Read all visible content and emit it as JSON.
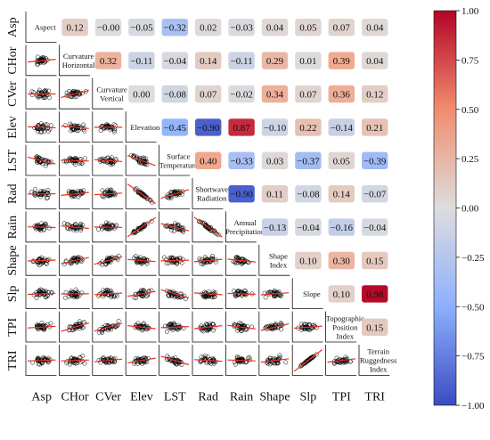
{
  "chart_data": {
    "type": "heatmap",
    "variables": [
      "Aspect",
      "CHor",
      "CVer",
      "Elev",
      "LST",
      "Rad",
      "Rain",
      "Shape",
      "Slp",
      "TPI",
      "TRI"
    ],
    "axis_labels": [
      "Asp",
      "CHor",
      "CVer",
      "Elev",
      "LST",
      "Rad",
      "Rain",
      "Shape",
      "Slp",
      "TPI",
      "TRI"
    ],
    "diagonal_labels": [
      [
        "Aspect"
      ],
      [
        "Curvature",
        "Horizontal"
      ],
      [
        "Curvature",
        "Vertical"
      ],
      [
        "Elevation"
      ],
      [
        "Surface",
        "Temperature"
      ],
      [
        "Shortwave",
        "Radiation"
      ],
      [
        "Annual",
        "Precipitation"
      ],
      [
        "Shape",
        "Index"
      ],
      [
        "Slope"
      ],
      [
        "Topographic",
        "Position",
        "Index"
      ],
      [
        "Terrain",
        "Ruggedness",
        "Index"
      ]
    ],
    "correlations": [
      {
        "row": 0,
        "col": 1,
        "text": "0.12",
        "value": 0.12
      },
      {
        "row": 0,
        "col": 2,
        "text": "−0.00",
        "value": 0.0
      },
      {
        "row": 0,
        "col": 3,
        "text": "−0.05",
        "value": -0.05
      },
      {
        "row": 0,
        "col": 4,
        "text": "−0.32",
        "value": -0.32
      },
      {
        "row": 0,
        "col": 5,
        "text": "0.02",
        "value": 0.02
      },
      {
        "row": 0,
        "col": 6,
        "text": "−0.03",
        "value": -0.03
      },
      {
        "row": 0,
        "col": 7,
        "text": "0.04",
        "value": 0.04
      },
      {
        "row": 0,
        "col": 8,
        "text": "0.05",
        "value": 0.05
      },
      {
        "row": 0,
        "col": 9,
        "text": "0.07",
        "value": 0.07
      },
      {
        "row": 0,
        "col": 10,
        "text": "0.04",
        "value": 0.04
      },
      {
        "row": 1,
        "col": 2,
        "text": "0.32",
        "value": 0.32
      },
      {
        "row": 1,
        "col": 3,
        "text": "−0.11",
        "value": -0.11
      },
      {
        "row": 1,
        "col": 4,
        "text": "−0.04",
        "value": -0.04
      },
      {
        "row": 1,
        "col": 5,
        "text": "0.14",
        "value": 0.14
      },
      {
        "row": 1,
        "col": 6,
        "text": "−0.11",
        "value": -0.11
      },
      {
        "row": 1,
        "col": 7,
        "text": "0.29",
        "value": 0.29
      },
      {
        "row": 1,
        "col": 8,
        "text": "0.01",
        "value": 0.01
      },
      {
        "row": 1,
        "col": 9,
        "text": "0.39",
        "value": 0.39
      },
      {
        "row": 1,
        "col": 10,
        "text": "0.04",
        "value": 0.04
      },
      {
        "row": 2,
        "col": 3,
        "text": "0.00",
        "value": 0.0
      },
      {
        "row": 2,
        "col": 4,
        "text": "−0.08",
        "value": -0.08
      },
      {
        "row": 2,
        "col": 5,
        "text": "0.07",
        "value": 0.07
      },
      {
        "row": 2,
        "col": 6,
        "text": "−0.02",
        "value": -0.02
      },
      {
        "row": 2,
        "col": 7,
        "text": "0.34",
        "value": 0.34
      },
      {
        "row": 2,
        "col": 8,
        "text": "0.07",
        "value": 0.07
      },
      {
        "row": 2,
        "col": 9,
        "text": "0.36",
        "value": 0.36
      },
      {
        "row": 2,
        "col": 10,
        "text": "0.12",
        "value": 0.12
      },
      {
        "row": 3,
        "col": 4,
        "text": "−0.45",
        "value": -0.45
      },
      {
        "row": 3,
        "col": 5,
        "text": "−0.90",
        "value": -0.9
      },
      {
        "row": 3,
        "col": 6,
        "text": "0.87",
        "value": 0.87
      },
      {
        "row": 3,
        "col": 7,
        "text": "−0.10",
        "value": -0.1
      },
      {
        "row": 3,
        "col": 8,
        "text": "0.22",
        "value": 0.22
      },
      {
        "row": 3,
        "col": 9,
        "text": "−0.14",
        "value": -0.14
      },
      {
        "row": 3,
        "col": 10,
        "text": "0.21",
        "value": 0.21
      },
      {
        "row": 4,
        "col": 5,
        "text": "0.40",
        "value": 0.4
      },
      {
        "row": 4,
        "col": 6,
        "text": "−0.33",
        "value": -0.33
      },
      {
        "row": 4,
        "col": 7,
        "text": "0.03",
        "value": 0.03
      },
      {
        "row": 4,
        "col": 8,
        "text": "−0.37",
        "value": -0.37
      },
      {
        "row": 4,
        "col": 9,
        "text": "0.05",
        "value": 0.05
      },
      {
        "row": 4,
        "col": 10,
        "text": "−0.39",
        "value": -0.39
      },
      {
        "row": 5,
        "col": 6,
        "text": "−0.90",
        "value": -0.9
      },
      {
        "row": 5,
        "col": 7,
        "text": "0.11",
        "value": 0.11
      },
      {
        "row": 5,
        "col": 8,
        "text": "−0.08",
        "value": -0.08
      },
      {
        "row": 5,
        "col": 9,
        "text": "0.14",
        "value": 0.14
      },
      {
        "row": 5,
        "col": 10,
        "text": "−0.07",
        "value": -0.07
      },
      {
        "row": 6,
        "col": 7,
        "text": "−0.13",
        "value": -0.13
      },
      {
        "row": 6,
        "col": 8,
        "text": "−0.04",
        "value": -0.04
      },
      {
        "row": 6,
        "col": 9,
        "text": "−0.16",
        "value": -0.16
      },
      {
        "row": 6,
        "col": 10,
        "text": "−0.04",
        "value": -0.04
      },
      {
        "row": 7,
        "col": 8,
        "text": "0.10",
        "value": 0.1
      },
      {
        "row": 7,
        "col": 9,
        "text": "0.30",
        "value": 0.3
      },
      {
        "row": 7,
        "col": 10,
        "text": "0.15",
        "value": 0.15
      },
      {
        "row": 8,
        "col": 9,
        "text": "0.10",
        "value": 0.1
      },
      {
        "row": 8,
        "col": 10,
        "text": "0.98",
        "value": 0.98
      },
      {
        "row": 9,
        "col": 10,
        "text": "0.15",
        "value": 0.15
      }
    ],
    "colorbar": {
      "range": [
        -1.0,
        1.0
      ],
      "ticks": [
        "1.00",
        "0.75",
        "0.50",
        "0.25",
        "0.00",
        "−0.25",
        "−0.50",
        "−0.75",
        "−1.00"
      ],
      "colors": {
        "low": "#3b4cc0",
        "mid": "#dddddd",
        "high": "#b40426"
      }
    },
    "lower_triangle": "scatter plots with red linear trend line",
    "scatter_color": "#000000",
    "trend_color": "#e8311f"
  }
}
